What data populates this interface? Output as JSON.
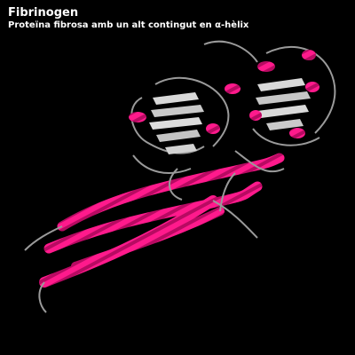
{
  "caption": {
    "title": "Fibrinogen",
    "subtitle": "Proteïna fibrosa amb un alt contingut en α-hèlix"
  },
  "colors": {
    "background": "#000000",
    "helix": "#ff1a8c",
    "sheet": "#cfcfcf",
    "coil": "#9a9a9a"
  }
}
